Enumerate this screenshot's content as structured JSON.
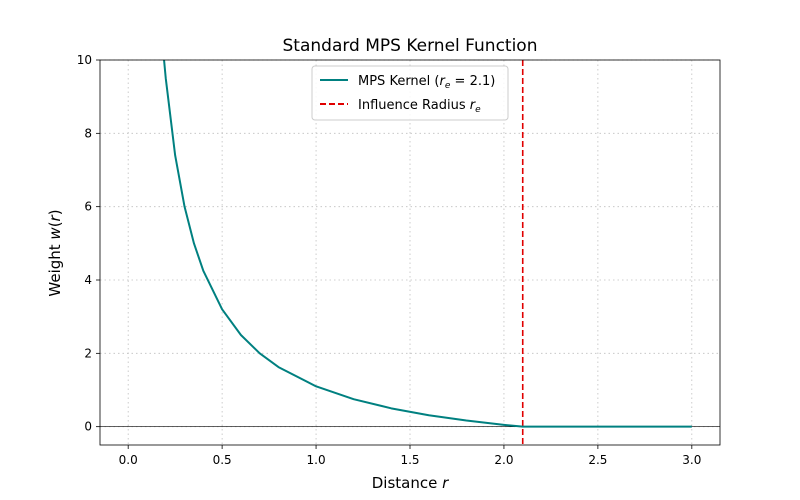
{
  "chart_data": {
    "type": "line",
    "title": "Standard MPS Kernel Function",
    "xlabel": "Distance r",
    "ylabel": "Weight w(r)",
    "xlim": [
      -0.15,
      3.15
    ],
    "ylim": [
      -0.5,
      10
    ],
    "xticks": [
      "0.0",
      "0.5",
      "1.0",
      "1.5",
      "2.0",
      "2.5",
      "3.0"
    ],
    "xtick_values": [
      0,
      0.5,
      1.0,
      1.5,
      2.0,
      2.5,
      3.0
    ],
    "yticks": [
      "0",
      "2",
      "4",
      "6",
      "8",
      "10"
    ],
    "ytick_values": [
      0,
      2,
      4,
      6,
      8,
      10
    ],
    "grid": true,
    "legend_position": "top-center",
    "series": [
      {
        "name": "MPS Kernel (r_e = 2.1)",
        "color": "#008080",
        "function": "w(r) = r_e / r - 1 for r < r_e, else 0",
        "x": [
          0.19,
          0.2,
          0.25,
          0.3,
          0.35,
          0.4,
          0.5,
          0.6,
          0.7,
          0.8,
          1.0,
          1.2,
          1.4,
          1.6,
          1.8,
          2.0,
          2.1,
          2.5,
          3.0
        ],
        "y": [
          10.05,
          9.5,
          7.4,
          6.0,
          5.0,
          4.25,
          3.2,
          2.5,
          2.0,
          1.625,
          1.1,
          0.75,
          0.5,
          0.3125,
          0.1667,
          0.05,
          0.0,
          0.0,
          0.0
        ]
      }
    ],
    "vlines": [
      {
        "name": "Influence Radius r_e",
        "x": 2.1,
        "color": "#e00000",
        "style": "dashed"
      }
    ],
    "hlines": [
      {
        "y": 0,
        "color": "#000000"
      }
    ]
  }
}
